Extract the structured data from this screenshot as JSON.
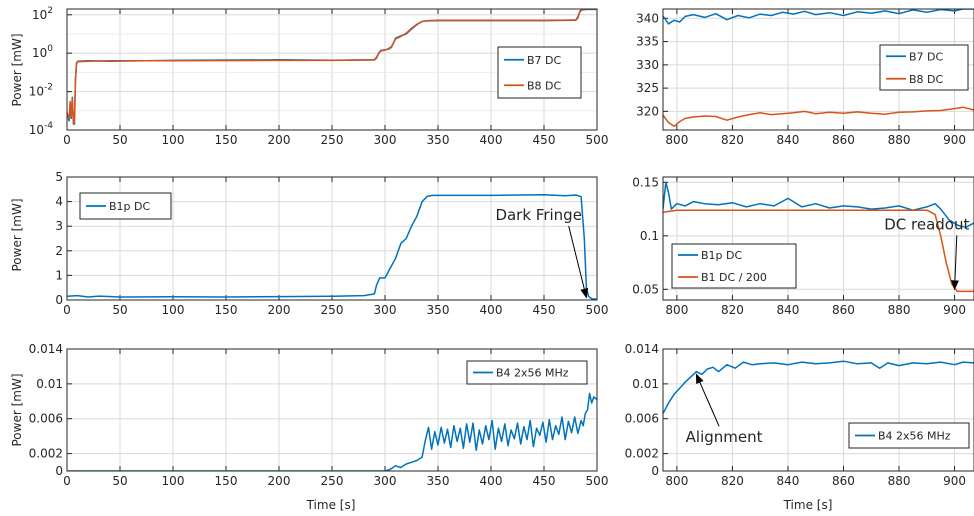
{
  "colors": {
    "blue": "#0072bd",
    "orange": "#d95319",
    "grid": "#d9d9d9",
    "axis": "#262626"
  },
  "chart_data": [
    {
      "id": "p1",
      "type": "line",
      "yscale": "log",
      "xlim": [
        0,
        500
      ],
      "ylim": [
        0.0001,
        200
      ],
      "xticks": [
        "0",
        "50",
        "100",
        "150",
        "200",
        "250",
        "300",
        "350",
        "400",
        "450",
        "500"
      ],
      "yticks": [
        {
          "v": 0.0001,
          "base": "10",
          "exp": "-4"
        },
        {
          "v": 0.01,
          "base": "10",
          "exp": "-2"
        },
        {
          "v": 1,
          "base": "10",
          "exp": "0"
        },
        {
          "v": 100,
          "base": "10",
          "exp": "2"
        }
      ],
      "ylabel": "Power [mW]",
      "xlabel": "",
      "grid": true,
      "legend_position": "right",
      "series": [
        {
          "name": "B7 DC",
          "color": "#0072bd",
          "x": [
            0,
            2,
            3,
            4,
            5,
            6,
            7,
            8,
            9,
            10,
            20,
            40,
            100,
            200,
            250,
            290,
            292,
            294,
            296,
            300,
            303,
            306,
            310,
            315,
            320,
            325,
            330,
            335,
            340,
            350,
            400,
            450,
            470,
            480,
            482,
            484,
            486,
            490,
            500
          ],
          "y": [
            0.0008,
            0.0003,
            0.002,
            0.0004,
            0.005,
            0.0003,
            0.0002,
            0.05,
            0.3,
            0.38,
            0.4,
            0.38,
            0.42,
            0.45,
            0.43,
            0.45,
            0.6,
            1.0,
            1.4,
            1.5,
            1.6,
            2.0,
            6,
            8,
            10,
            18,
            30,
            45,
            48,
            50,
            50,
            50,
            51,
            52,
            70,
            150,
            180,
            190,
            190
          ]
        },
        {
          "name": "B8 DC",
          "color": "#d95319",
          "x": [
            0,
            2,
            3,
            4,
            5,
            6,
            7,
            8,
            9,
            10,
            20,
            40,
            100,
            200,
            250,
            290,
            292,
            294,
            296,
            300,
            303,
            306,
            310,
            315,
            320,
            325,
            330,
            335,
            340,
            350,
            400,
            450,
            470,
            480,
            482,
            484,
            486,
            490,
            500
          ],
          "y": [
            0.0007,
            0.0004,
            0.003,
            0.0005,
            0.004,
            0.0002,
            0.0003,
            0.04,
            0.28,
            0.36,
            0.38,
            0.4,
            0.4,
            0.42,
            0.42,
            0.44,
            0.55,
            0.95,
            1.3,
            1.45,
            1.7,
            2.2,
            5.5,
            7.5,
            11,
            20,
            32,
            44,
            50,
            52,
            52,
            52,
            53,
            54,
            80,
            160,
            190,
            200,
            200
          ]
        }
      ]
    },
    {
      "id": "p2",
      "type": "line",
      "yscale": "linear",
      "xlim": [
        795,
        907
      ],
      "ylim": [
        316,
        342
      ],
      "xticks": [
        "800",
        "820",
        "840",
        "860",
        "880",
        "900"
      ],
      "yticks": [
        {
          "v": 320,
          "t": "320"
        },
        {
          "v": 325,
          "t": "325"
        },
        {
          "v": 330,
          "t": "330"
        },
        {
          "v": 335,
          "t": "335"
        },
        {
          "v": 340,
          "t": "340"
        }
      ],
      "ylabel": "",
      "xlabel": "",
      "grid": true,
      "legend_position": "right",
      "series": [
        {
          "name": "B7 DC",
          "color": "#0072bd",
          "x": [
            795,
            797,
            799,
            801,
            803,
            806,
            810,
            814,
            818,
            822,
            826,
            830,
            834,
            838,
            842,
            846,
            850,
            855,
            860,
            865,
            870,
            875,
            880,
            885,
            890,
            895,
            900,
            903,
            907
          ],
          "y": [
            340.5,
            338.8,
            339.6,
            339.2,
            340.4,
            340.8,
            340.2,
            341.0,
            339.7,
            340.6,
            340.1,
            340.9,
            340.6,
            341.3,
            340.9,
            341.5,
            340.8,
            341.2,
            340.6,
            341.4,
            341.1,
            341.6,
            341.0,
            341.8,
            341.3,
            341.9,
            341.6,
            342.0,
            342.0
          ]
        },
        {
          "name": "B8 DC",
          "color": "#d95319",
          "x": [
            795,
            797,
            799,
            801,
            803,
            806,
            810,
            814,
            818,
            822,
            826,
            830,
            834,
            838,
            842,
            846,
            850,
            855,
            860,
            865,
            870,
            875,
            880,
            885,
            890,
            895,
            900,
            903,
            907
          ],
          "y": [
            319.2,
            317.6,
            316.8,
            317.8,
            318.5,
            318.8,
            319.0,
            318.9,
            318.1,
            318.8,
            319.3,
            319.7,
            319.3,
            319.5,
            319.7,
            320.0,
            319.5,
            319.8,
            319.6,
            319.9,
            319.6,
            319.4,
            319.8,
            319.9,
            320.1,
            320.2,
            320.6,
            320.9,
            320.3
          ]
        }
      ]
    },
    {
      "id": "p3",
      "type": "line",
      "yscale": "linear",
      "xlim": [
        0,
        500
      ],
      "ylim": [
        0,
        5
      ],
      "xticks": [
        "0",
        "50",
        "100",
        "150",
        "200",
        "250",
        "300",
        "350",
        "400",
        "450",
        "500"
      ],
      "yticks": [
        {
          "v": 0,
          "t": "0"
        },
        {
          "v": 1,
          "t": "1"
        },
        {
          "v": 2,
          "t": "2"
        },
        {
          "v": 3,
          "t": "3"
        },
        {
          "v": 4,
          "t": "4"
        },
        {
          "v": 5,
          "t": "5"
        }
      ],
      "ylabel": "Power [mW]",
      "xlabel": "",
      "grid": true,
      "legend_position": "top-left",
      "annotation": {
        "text": "Dark Fringe",
        "x": 445,
        "y": 3.25,
        "arrow_to": [
          490,
          0.1
        ]
      },
      "series": [
        {
          "name": "B1p DC",
          "color": "#0072bd",
          "x": [
            0,
            10,
            20,
            30,
            50,
            100,
            150,
            200,
            250,
            280,
            290,
            292,
            295,
            300,
            305,
            310,
            315,
            320,
            325,
            330,
            335,
            340,
            345,
            350,
            400,
            450,
            470,
            480,
            485,
            488,
            490,
            492,
            495,
            500
          ],
          "y": [
            0.15,
            0.18,
            0.12,
            0.16,
            0.12,
            0.13,
            0.12,
            0.14,
            0.15,
            0.18,
            0.25,
            0.6,
            0.9,
            0.9,
            1.3,
            1.7,
            2.3,
            2.5,
            3.0,
            3.4,
            4.0,
            4.22,
            4.25,
            4.25,
            4.25,
            4.28,
            4.24,
            4.27,
            4.2,
            2.5,
            0.5,
            0.15,
            0.05,
            0.03
          ]
        }
      ]
    },
    {
      "id": "p4",
      "type": "line",
      "yscale": "linear",
      "xlim": [
        795,
        907
      ],
      "ylim": [
        0.04,
        0.155
      ],
      "xticks": [
        "800",
        "820",
        "840",
        "860",
        "880",
        "900"
      ],
      "yticks": [
        {
          "v": 0.05,
          "t": "0.05"
        },
        {
          "v": 0.1,
          "t": "0.1"
        },
        {
          "v": 0.15,
          "t": "0.15"
        }
      ],
      "ylabel": "",
      "xlabel": "",
      "grid": true,
      "legend_position": "bottom-left",
      "annotation": {
        "text": "DC readout",
        "x": 890,
        "y": 0.106,
        "arrow_to": [
          900,
          0.05
        ]
      },
      "series": [
        {
          "name": "B1p DC",
          "color": "#0072bd",
          "x": [
            795,
            796,
            797,
            798,
            800,
            803,
            806,
            810,
            815,
            820,
            825,
            830,
            835,
            840,
            845,
            850,
            855,
            860,
            865,
            870,
            875,
            880,
            885,
            890,
            893,
            895,
            898,
            901,
            904,
            907
          ],
          "y": [
            0.125,
            0.15,
            0.14,
            0.125,
            0.13,
            0.128,
            0.132,
            0.13,
            0.129,
            0.131,
            0.127,
            0.13,
            0.128,
            0.135,
            0.127,
            0.13,
            0.126,
            0.128,
            0.127,
            0.125,
            0.126,
            0.128,
            0.124,
            0.127,
            0.13,
            0.125,
            0.115,
            0.11,
            0.108,
            0.112
          ]
        },
        {
          "name": "B1 DC / 200",
          "color": "#d95319",
          "x": [
            795,
            800,
            850,
            890,
            893,
            895,
            897,
            899,
            901,
            903,
            907
          ],
          "y": [
            0.122,
            0.124,
            0.124,
            0.124,
            0.12,
            0.1,
            0.075,
            0.055,
            0.048,
            0.048,
            0.048
          ]
        }
      ]
    },
    {
      "id": "p5",
      "type": "line",
      "yscale": "linear",
      "xlim": [
        0,
        500
      ],
      "ylim": [
        0,
        0.014
      ],
      "xticks": [
        "0",
        "50",
        "100",
        "150",
        "200",
        "250",
        "300",
        "350",
        "400",
        "450",
        "500"
      ],
      "yticks": [
        {
          "v": 0,
          "t": "0"
        },
        {
          "v": 0.002,
          "t": "0.002"
        },
        {
          "v": 0.006,
          "t": "0.006"
        },
        {
          "v": 0.01,
          "t": "0.01"
        },
        {
          "v": 0.014,
          "t": "0.014"
        }
      ],
      "ylabel": "Power [mW]",
      "xlabel": "Time [s]",
      "grid": true,
      "legend_position": "top-right",
      "series": [
        {
          "name": "B4 2x56 MHz",
          "color": "#0072bd",
          "x": [
            0,
            100,
            200,
            300,
            305,
            310,
            315,
            320,
            325,
            330,
            335,
            338,
            341,
            344,
            347,
            350,
            353,
            356,
            359,
            362,
            365,
            368,
            371,
            374,
            377,
            380,
            383,
            386,
            389,
            392,
            395,
            398,
            401,
            404,
            407,
            410,
            413,
            416,
            419,
            422,
            425,
            428,
            431,
            434,
            437,
            440,
            443,
            446,
            449,
            452,
            455,
            458,
            461,
            464,
            467,
            470,
            473,
            476,
            479,
            482,
            485,
            487,
            489,
            491,
            493,
            495,
            497,
            500
          ],
          "y": [
            0,
            0,
            0,
            0,
            0.0002,
            0.0006,
            0.0004,
            0.0008,
            0.001,
            0.0012,
            0.0016,
            0.0035,
            0.005,
            0.0025,
            0.0045,
            0.003,
            0.005,
            0.0032,
            0.0048,
            0.0027,
            0.0052,
            0.0034,
            0.0049,
            0.0026,
            0.0054,
            0.0033,
            0.0055,
            0.0024,
            0.0047,
            0.0031,
            0.0052,
            0.0036,
            0.0058,
            0.0025,
            0.0049,
            0.0034,
            0.0054,
            0.0029,
            0.0047,
            0.0037,
            0.0055,
            0.0031,
            0.0051,
            0.0036,
            0.0058,
            0.0028,
            0.0049,
            0.0041,
            0.0056,
            0.0033,
            0.0059,
            0.0036,
            0.0052,
            0.0042,
            0.0062,
            0.0036,
            0.0057,
            0.0044,
            0.0062,
            0.0043,
            0.0058,
            0.0052,
            0.0066,
            0.007,
            0.0089,
            0.0078,
            0.0085,
            0.0082
          ]
        }
      ]
    },
    {
      "id": "p6",
      "type": "line",
      "yscale": "linear",
      "xlim": [
        795,
        907
      ],
      "ylim": [
        0,
        0.014
      ],
      "xticks": [
        "800",
        "820",
        "840",
        "860",
        "880",
        "900"
      ],
      "yticks": [
        {
          "v": 0,
          "t": "0"
        },
        {
          "v": 0.002,
          "t": "0.002"
        },
        {
          "v": 0.006,
          "t": "0.006"
        },
        {
          "v": 0.01,
          "t": "0.01"
        },
        {
          "v": 0.014,
          "t": "0.014"
        }
      ],
      "ylabel": "",
      "xlabel": "Time [s]",
      "grid": true,
      "legend_position": "bottom-right",
      "annotation": {
        "text": "Alignment",
        "x": 817,
        "y": 0.0033,
        "arrow_to": [
          807,
          0.0111
        ]
      },
      "series": [
        {
          "name": "B4 2x56 MHz",
          "color": "#0072bd",
          "x": [
            795,
            797,
            799,
            801,
            803,
            805,
            807,
            809,
            811,
            813,
            815,
            818,
            821,
            824,
            827,
            830,
            835,
            840,
            845,
            850,
            855,
            860,
            865,
            870,
            873,
            876,
            880,
            885,
            890,
            895,
            900,
            903,
            907
          ],
          "y": [
            0.0066,
            0.0078,
            0.0088,
            0.0095,
            0.0102,
            0.0108,
            0.0114,
            0.0111,
            0.0117,
            0.0119,
            0.0114,
            0.0122,
            0.0118,
            0.0125,
            0.0122,
            0.0123,
            0.0124,
            0.0122,
            0.0125,
            0.0123,
            0.0124,
            0.0126,
            0.0123,
            0.0124,
            0.0118,
            0.0124,
            0.0121,
            0.0124,
            0.0123,
            0.0125,
            0.0122,
            0.0125,
            0.0124
          ]
        }
      ]
    }
  ]
}
